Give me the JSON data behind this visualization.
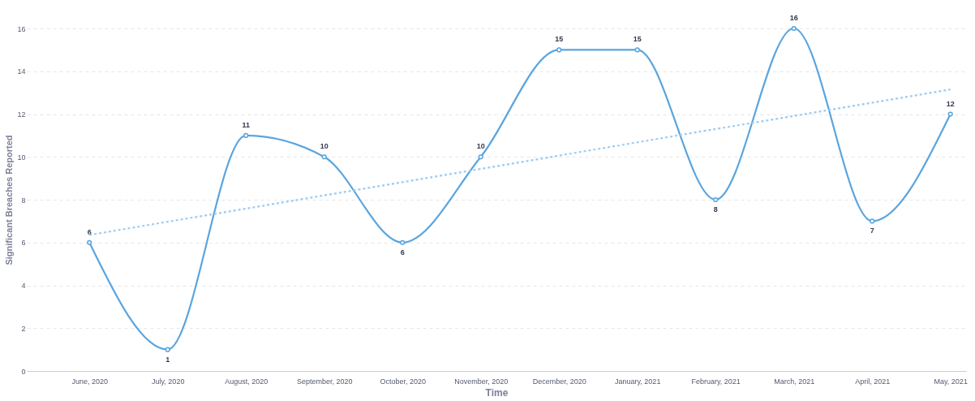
{
  "chart_data": {
    "type": "line",
    "xlabel": "Time",
    "ylabel": "Significant Breaches Reported",
    "categories": [
      "June, 2020",
      "July, 2020",
      "August, 2020",
      "September, 2020",
      "October, 2020",
      "November, 2020",
      "December, 2020",
      "January, 2021",
      "February, 2021",
      "March, 2021",
      "April, 2021",
      "May, 2021"
    ],
    "series": [
      {
        "color": "#5aa5de",
        "values": [
          6,
          1,
          11,
          10,
          6,
          10,
          15,
          15,
          8,
          16,
          7,
          12
        ],
        "marker": "circle",
        "line_style": "solid",
        "data_labels": true
      },
      {
        "type": "line",
        "color": "#9ccbf0",
        "values": [
          6.35,
          6.97,
          7.58,
          8.2,
          8.82,
          9.44,
          10.06,
          10.68,
          11.3,
          11.91,
          12.53,
          13.15
        ],
        "marker": "none",
        "line_style": "dotted"
      }
    ],
    "ylim": [
      0,
      16
    ],
    "yticks": [
      0,
      2,
      4,
      6,
      8,
      10,
      12,
      14,
      16
    ],
    "grid": "y"
  }
}
